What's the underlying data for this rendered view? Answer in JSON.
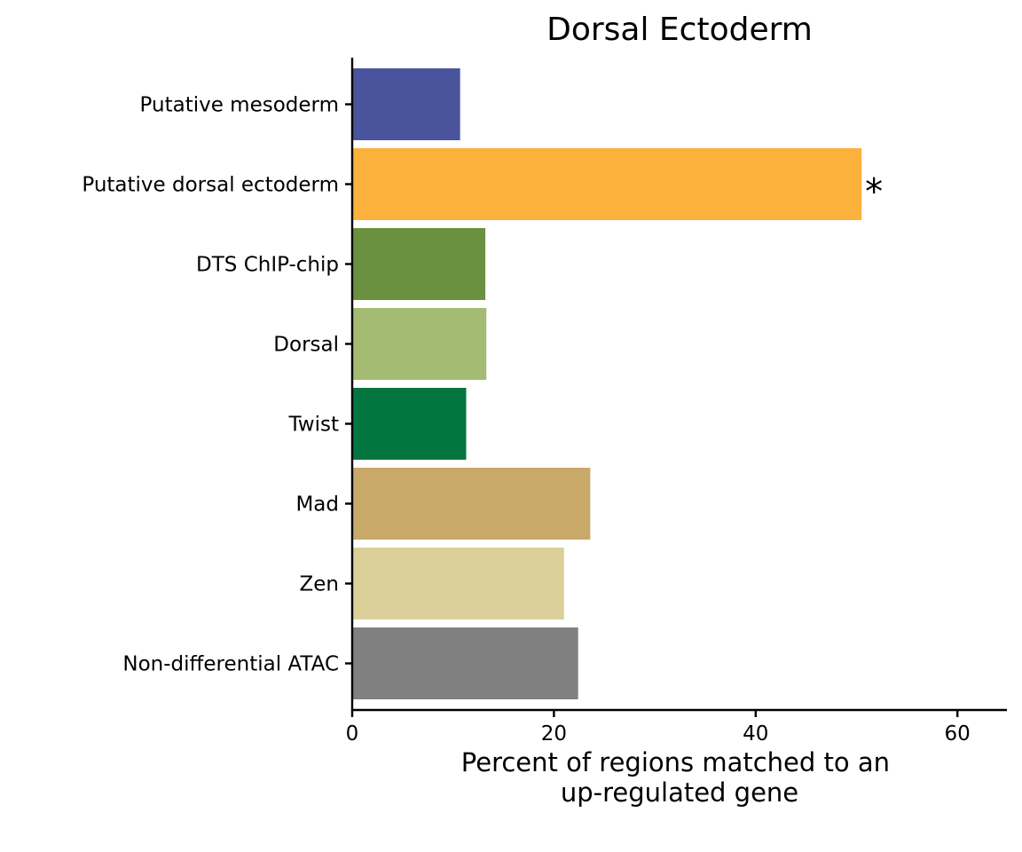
{
  "chart_data": {
    "type": "bar",
    "orientation": "horizontal",
    "title": "Dorsal Ectoderm",
    "xlabel": [
      "Percent of regions matched to an",
      "up-regulated gene"
    ],
    "ylabel": "",
    "xlim": [
      0,
      65
    ],
    "x_ticks": [
      0,
      20,
      40,
      60
    ],
    "grid": false,
    "legend": "none",
    "categories": [
      "Putative mesoderm",
      "Putative dorsal ectoderm",
      "DTS ChIP-chip",
      "Dorsal",
      "Twist",
      "Mad",
      "Zen",
      "Non-differential ATAC"
    ],
    "values": [
      10.7,
      50.5,
      13.2,
      13.3,
      11.3,
      23.6,
      21.0,
      22.4
    ],
    "colors": [
      "#4a549c",
      "#fbb13c",
      "#6a913f",
      "#a3bc71",
      "#03763f",
      "#c8a96a",
      "#dbcf9a",
      "#808080"
    ],
    "annotations": [
      {
        "category": "Putative dorsal ectoderm",
        "text": "*"
      }
    ]
  }
}
